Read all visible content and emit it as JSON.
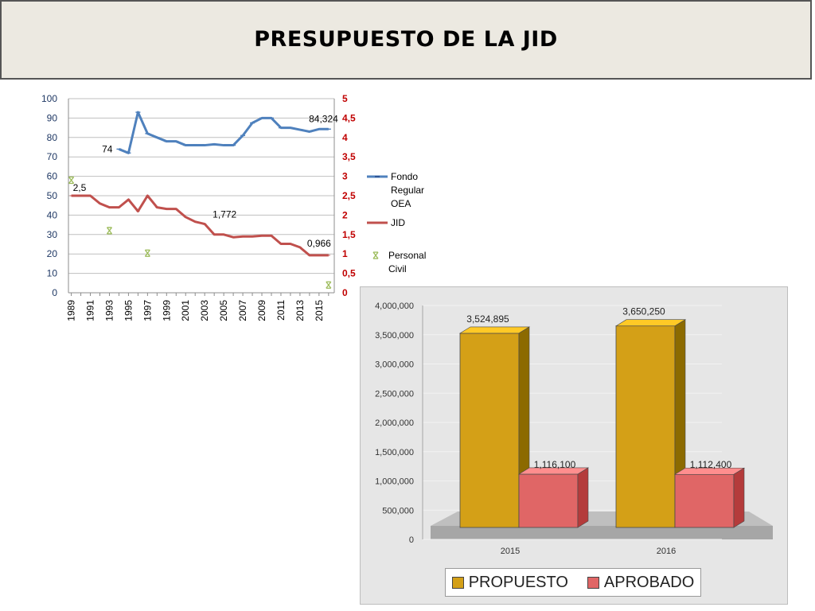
{
  "page": {
    "title": "PRESUPUESTO DE LA JID"
  },
  "colors": {
    "blue": "#4f81bd",
    "red": "#c0504d",
    "green": "#9bbb59",
    "gold": "#d4a017",
    "rose": "#e06666"
  },
  "chart_data": [
    {
      "type": "line",
      "title": "",
      "y_left": {
        "ticks": [
          "0",
          "10",
          "20",
          "30",
          "40",
          "50",
          "60",
          "70",
          "80",
          "90",
          "100"
        ],
        "lim": [
          0,
          100
        ],
        "color": "#1f3864"
      },
      "y_right": {
        "ticks": [
          "0",
          "0,5",
          "1",
          "1,5",
          "2",
          "2,5",
          "3",
          "3,5",
          "4",
          "4,5",
          "5"
        ],
        "lim": [
          0,
          5
        ],
        "color": "#c00000"
      },
      "x_ticks": [
        "1989",
        "1991",
        "1993",
        "1995",
        "1997",
        "1999",
        "2001",
        "2003",
        "2005",
        "2007",
        "2009",
        "2011",
        "2013",
        "2015"
      ],
      "grid": true,
      "legend_position": "right",
      "series": [
        {
          "name": "Fondo Regular OEA",
          "axis": "left",
          "color": "#4f81bd",
          "x": [
            1994,
            1995,
            1996,
            1997,
            1998,
            1999,
            2000,
            2001,
            2002,
            2003,
            2004,
            2005,
            2006,
            2007,
            2008,
            2009,
            2010,
            2011,
            2012,
            2013,
            2014,
            2015,
            2016
          ],
          "y": [
            74,
            72,
            93,
            82,
            80,
            78,
            78,
            76,
            76,
            76,
            76.5,
            76,
            76,
            81,
            87.5,
            90,
            90,
            85,
            85,
            84,
            83,
            84.3,
            84.3
          ]
        },
        {
          "name": "JID",
          "axis": "right",
          "color": "#c0504d",
          "x": [
            1989,
            1990,
            1991,
            1992,
            1993,
            1994,
            1995,
            1996,
            1997,
            1998,
            1999,
            2000,
            2001,
            2002,
            2003,
            2004,
            2005,
            2006,
            2007,
            2008,
            2009,
            2010,
            2011,
            2012,
            2013,
            2014,
            2015,
            2016
          ],
          "y": [
            2.5,
            2.5,
            2.5,
            2.3,
            2.2,
            2.2,
            2.4,
            2.1,
            2.5,
            2.2,
            2.16,
            2.16,
            1.95,
            1.83,
            1.772,
            1.5,
            1.5,
            1.43,
            1.45,
            1.45,
            1.47,
            1.47,
            1.26,
            1.26,
            1.17,
            0.966,
            0.966,
            0.966
          ]
        },
        {
          "name": "Personal Civil",
          "axis": "right",
          "color": "#9bbb59",
          "marker_only": true,
          "x": [
            1989,
            1993,
            1997,
            2016
          ],
          "y": [
            2.9,
            1.6,
            1.02,
            0.2
          ]
        }
      ],
      "data_labels": [
        {
          "series": "Fondo Regular OEA",
          "x": 1994,
          "y": 74,
          "text": "74"
        },
        {
          "series": "Fondo Regular OEA",
          "x": 2016,
          "y": 84.3,
          "text": "84,324"
        },
        {
          "series": "JID",
          "x": 1989,
          "y": 2.5,
          "text": "2,5"
        },
        {
          "series": "JID",
          "x": 2003,
          "y": 1.772,
          "text": "1,772"
        },
        {
          "series": "JID",
          "x": 2015,
          "y": 0.966,
          "text": "0,966"
        }
      ],
      "legend": [
        "Fondo Regular OEA",
        "JID",
        "Personal Civil"
      ]
    },
    {
      "type": "bar",
      "title": "",
      "categories": [
        "2015",
        "2016"
      ],
      "ylim": [
        0,
        4000000
      ],
      "y_ticks": [
        "0",
        "500,000",
        "1,000,000",
        "1,500,000",
        "2,000,000",
        "2,500,000",
        "3,000,000",
        "3,500,000",
        "4,000,000"
      ],
      "series": [
        {
          "name": "PROPUESTO",
          "color": "#d4a017",
          "values": [
            3524895,
            3650250
          ],
          "labels": [
            "3,524,895",
            "3,650,250"
          ]
        },
        {
          "name": "APROBADO",
          "color": "#e06666",
          "values": [
            1116100,
            1112400
          ],
          "labels": [
            "1,116,100",
            "1,112,400"
          ]
        }
      ],
      "legend_position": "bottom",
      "grid": true
    }
  ]
}
